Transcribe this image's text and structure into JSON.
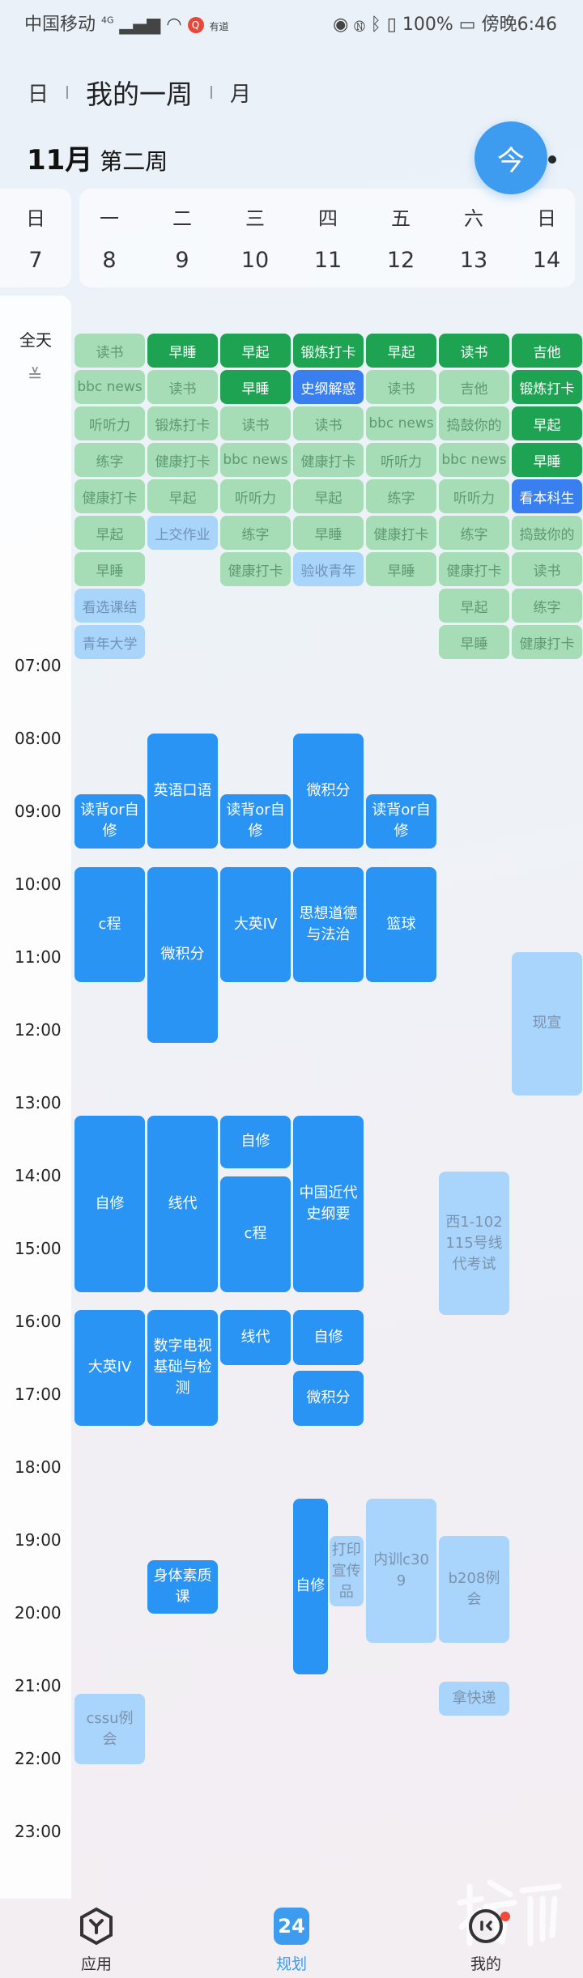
{
  "status_bar": {
    "carrier": "中国移动",
    "network": "4G",
    "app_badge": "有道",
    "battery": "100%",
    "time": "傍晚6:46"
  },
  "view_tabs": {
    "day": "日",
    "week": "我的一周",
    "month": "月"
  },
  "week_title": {
    "month": "11月",
    "week": "第二周"
  },
  "today_button": "今",
  "more_icon": "more-dots-icon",
  "days": [
    {
      "weekday": "日",
      "date": "7"
    },
    {
      "weekday": "一",
      "date": "8"
    },
    {
      "weekday": "二",
      "date": "9"
    },
    {
      "weekday": "三",
      "date": "10"
    },
    {
      "weekday": "四",
      "date": "11"
    },
    {
      "weekday": "五",
      "date": "12"
    },
    {
      "weekday": "六",
      "date": "13"
    },
    {
      "weekday": "日",
      "date": "14"
    }
  ],
  "colors": {
    "habit_light": "#a6dcb6",
    "habit_done": "#1ea352",
    "task_blue": "#3a7ff0",
    "task_light": "#aad5fb",
    "schedule": "#2a94f4",
    "schedule_pending": "#a9d4fb",
    "accent": "#3d9bf0"
  },
  "all_day": {
    "label": "全天",
    "columns": [
      [
        [
          "读书",
          "L"
        ],
        [
          "bbc news",
          "L"
        ],
        [
          "听听力",
          "L"
        ],
        [
          "练字",
          "L"
        ],
        [
          "健康打卡",
          "L"
        ],
        [
          "早起",
          "L"
        ],
        [
          "早睡",
          "L"
        ],
        [
          "看选课结",
          "LB"
        ],
        [
          "青年大学",
          "LB"
        ]
      ],
      [
        [
          "早睡",
          "D"
        ],
        [
          "读书",
          "L"
        ],
        [
          "锻炼打卡",
          "L"
        ],
        [
          "健康打卡",
          "L"
        ],
        [
          "早起",
          "L"
        ],
        [
          "上交作业",
          "LB"
        ]
      ],
      [
        [
          "早起",
          "D"
        ],
        [
          "早睡",
          "D"
        ],
        [
          "读书",
          "L"
        ],
        [
          "bbc news",
          "L"
        ],
        [
          "听听力",
          "L"
        ],
        [
          "练字",
          "L"
        ],
        [
          "健康打卡",
          "L"
        ]
      ],
      [
        [
          "锻炼打卡",
          "D"
        ],
        [
          "史纲解惑",
          "B"
        ],
        [
          "读书",
          "L"
        ],
        [
          "健康打卡",
          "L"
        ],
        [
          "早起",
          "L"
        ],
        [
          "早睡",
          "L"
        ],
        [
          "验收青年",
          "LB"
        ]
      ],
      [
        [
          "早起",
          "D"
        ],
        [
          "读书",
          "L"
        ],
        [
          "bbc news",
          "L"
        ],
        [
          "听听力",
          "L"
        ],
        [
          "练字",
          "L"
        ],
        [
          "健康打卡",
          "L"
        ],
        [
          "早睡",
          "L"
        ]
      ],
      [
        [
          "读书",
          "D"
        ],
        [
          "吉他",
          "L"
        ],
        [
          "捣鼓你的",
          "L"
        ],
        [
          "bbc news",
          "L"
        ],
        [
          "听听力",
          "L"
        ],
        [
          "练字",
          "L"
        ],
        [
          "健康打卡",
          "L"
        ],
        [
          "早起",
          "L"
        ],
        [
          "早睡",
          "L"
        ]
      ],
      [
        [
          "吉他",
          "D"
        ],
        [
          "锻炼打卡",
          "D"
        ],
        [
          "早起",
          "D"
        ],
        [
          "早睡",
          "D"
        ],
        [
          "看本科生",
          "B"
        ],
        [
          "捣鼓你的",
          "L"
        ],
        [
          "读书",
          "L"
        ],
        [
          "练字",
          "L"
        ],
        [
          "健康打卡",
          "L"
        ]
      ]
    ]
  },
  "hours": [
    "07:00",
    "08:00",
    "09:00",
    "10:00",
    "11:00",
    "12:00",
    "13:00",
    "14:00",
    "15:00",
    "16:00",
    "17:00",
    "18:00",
    "19:00",
    "20:00",
    "21:00",
    "22:00",
    "23:00"
  ],
  "events": [
    {
      "day": "一",
      "title": "读背or自修",
      "start": "08:45",
      "end": "09:30",
      "style": "S"
    },
    {
      "day": "一",
      "title": "c程",
      "start": "09:45",
      "end": "11:20",
      "style": "S"
    },
    {
      "day": "一",
      "title": "自修",
      "start": "13:10",
      "end": "15:35",
      "style": "S"
    },
    {
      "day": "一",
      "title": "大英IV",
      "start": "15:50",
      "end": "17:25",
      "style": "S"
    },
    {
      "day": "一",
      "title": "cssu例会",
      "start": "21:06",
      "end": "22:04",
      "style": "P"
    },
    {
      "day": "二",
      "title": "英语口语",
      "start": "07:55",
      "end": "09:30",
      "style": "S"
    },
    {
      "day": "二",
      "title": "微积分",
      "start": "09:45",
      "end": "12:10",
      "style": "S"
    },
    {
      "day": "二",
      "title": "线代",
      "start": "13:10",
      "end": "15:35",
      "style": "S"
    },
    {
      "day": "二",
      "title": "数字电视基础与检测",
      "start": "15:50",
      "end": "17:25",
      "style": "S"
    },
    {
      "day": "二",
      "title": "身体素质课",
      "start": "19:16",
      "end": "20:00",
      "style": "S"
    },
    {
      "day": "三",
      "title": "读背or自修",
      "start": "08:45",
      "end": "09:30",
      "style": "S"
    },
    {
      "day": "三",
      "title": "大英IV",
      "start": "09:45",
      "end": "11:20",
      "style": "S"
    },
    {
      "day": "三",
      "title": "自修",
      "start": "13:10",
      "end": "13:53",
      "style": "S"
    },
    {
      "day": "三",
      "title": "c程",
      "start": "14:00",
      "end": "15:35",
      "style": "S"
    },
    {
      "day": "三",
      "title": "线代",
      "start": "15:50",
      "end": "16:35",
      "style": "S"
    },
    {
      "day": "四",
      "title": "微积分",
      "start": "07:55",
      "end": "09:30",
      "style": "S"
    },
    {
      "day": "四",
      "title": "思想道德与法治",
      "start": "09:45",
      "end": "11:20",
      "style": "S"
    },
    {
      "day": "四",
      "title": "中国近代史纲要",
      "start": "13:10",
      "end": "15:35",
      "style": "S"
    },
    {
      "day": "四",
      "title": "自修",
      "start": "15:50",
      "end": "16:35",
      "style": "S"
    },
    {
      "day": "四",
      "title": "微积分",
      "start": "16:40",
      "end": "17:25",
      "style": "S"
    },
    {
      "day": "四",
      "title": "自修",
      "start": "18:25",
      "end": "20:50",
      "style": "S"
    },
    {
      "day": "四",
      "title": "打印宣传品",
      "start": "18:56",
      "end": "19:54",
      "style": "P"
    },
    {
      "day": "五",
      "title": "读背or自修",
      "start": "08:45",
      "end": "09:30",
      "style": "S"
    },
    {
      "day": "五",
      "title": "篮球",
      "start": "09:45",
      "end": "11:20",
      "style": "S"
    },
    {
      "day": "五",
      "title": "内训c309",
      "start": "18:25",
      "end": "20:24",
      "style": "P"
    },
    {
      "day": "六",
      "title": "西1-102 115号线代考试",
      "start": "13:56",
      "end": "15:54",
      "style": "P"
    },
    {
      "day": "六",
      "title": "b208例会",
      "start": "18:56",
      "end": "20:24",
      "style": "P"
    },
    {
      "day": "六",
      "title": "拿快递",
      "start": "20:56",
      "end": "21:24",
      "style": "P"
    },
    {
      "day": "日",
      "title": "现宣",
      "start": "10:55",
      "end": "12:53",
      "style": "P"
    }
  ],
  "bottom_nav": [
    {
      "label": "应用",
      "icon": "apps-hexagon-icon"
    },
    {
      "label": "规划",
      "icon": "calendar-24-icon",
      "badge_text": "24",
      "active": true
    },
    {
      "label": "我的",
      "icon": "profile-icon",
      "has_notification": true
    }
  ],
  "watermark": "橙柿"
}
